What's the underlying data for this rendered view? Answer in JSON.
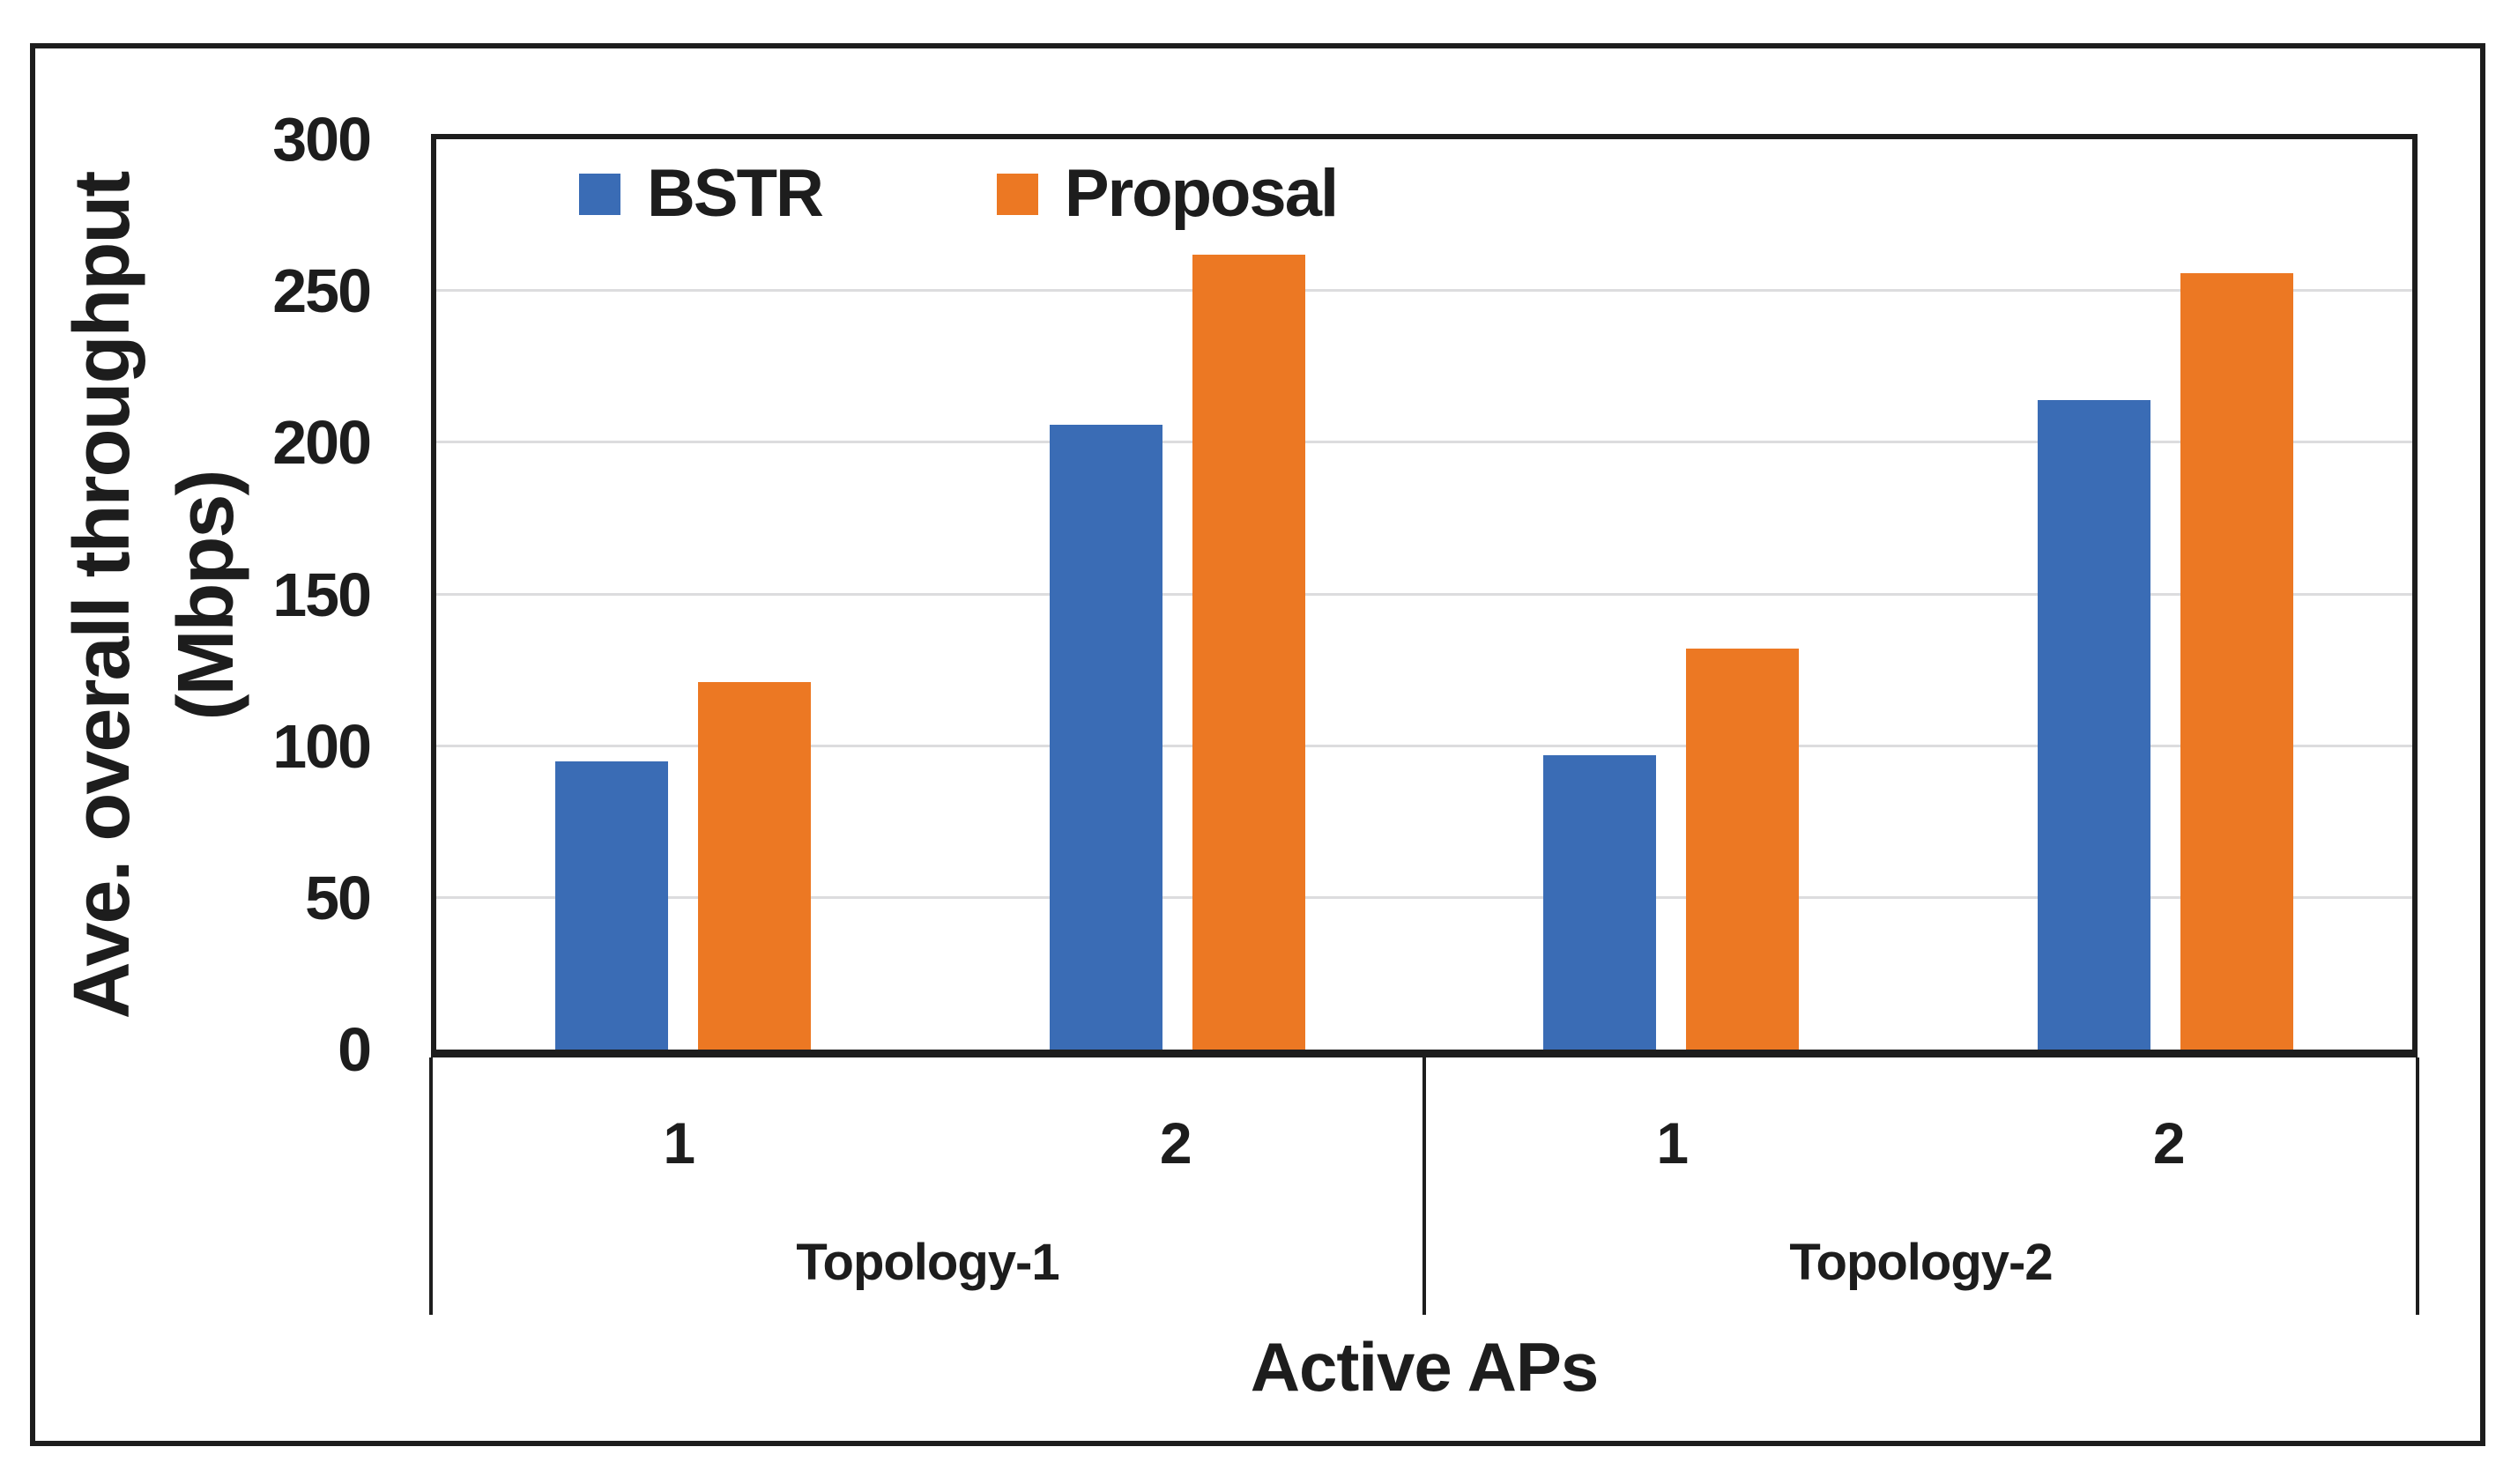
{
  "figure": {
    "background_color": "#FFFFFF",
    "border_color": "#1d1d1d",
    "axis_color": "#1d1d1d",
    "gridline_color": "#DCDCDE",
    "text_color": "#1d1d1d"
  },
  "chart_data": {
    "type": "bar",
    "title": "",
    "xlabel": "Active APs",
    "ylabel": "Ave. overall throughput (Mbps)",
    "ylabel_lines": [
      "Ave. overall throughput",
      "(Mbps)"
    ],
    "ylim": [
      0,
      300
    ],
    "y_ticks": [
      0,
      50,
      100,
      150,
      200,
      250,
      300
    ],
    "grid": "horizontal",
    "legend_position": "inside-top-left",
    "legend_entries": [
      "BSTR",
      "Proposal"
    ],
    "outer_groups": [
      {
        "label": "Topology-1",
        "categories": [
          "1",
          "2"
        ]
      },
      {
        "label": "Topology-2",
        "categories": [
          "1",
          "2"
        ]
      }
    ],
    "categories": [
      "Topology-1 | 1 AP",
      "Topology-1 | 2 APs",
      "Topology-2 | 1 AP",
      "Topology-2 | 2 APs"
    ],
    "series": [
      {
        "name": "BSTR",
        "color": "#3A6CB5",
        "values": [
          95,
          206,
          97,
          214
        ]
      },
      {
        "name": "Proposal",
        "color": "#EC7823",
        "values": [
          121,
          262,
          132,
          256
        ]
      }
    ]
  }
}
